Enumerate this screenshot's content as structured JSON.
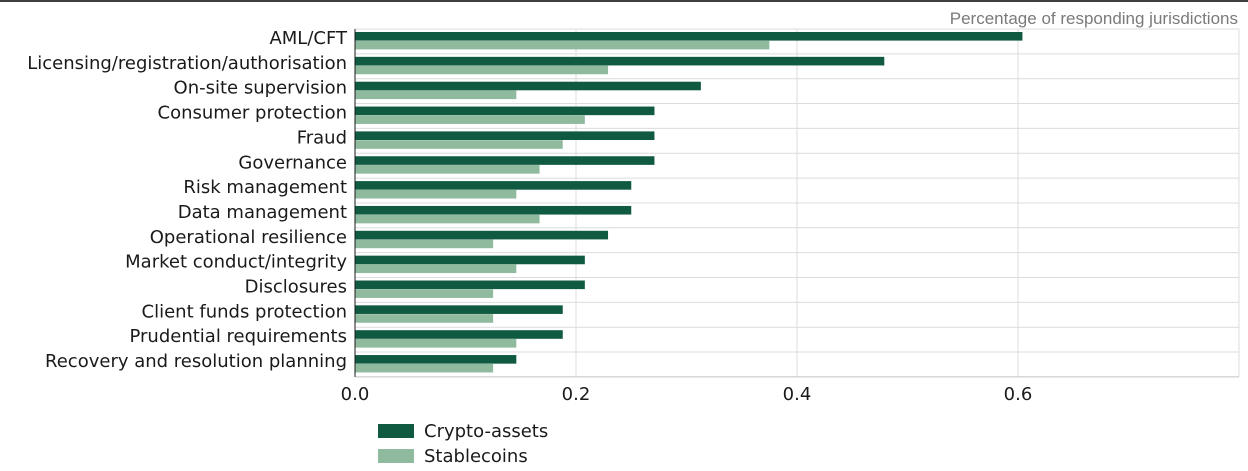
{
  "chart_data": {
    "type": "bar",
    "orientation": "horizontal",
    "note": "Percentage of responding jurisdictions",
    "categories": [
      "AML/CFT",
      "Licensing/registration/authorisation",
      "On-site supervision",
      "Consumer protection",
      "Fraud",
      "Governance",
      "Risk management",
      "Data management",
      "Operational resilience",
      "Market conduct/integrity",
      "Disclosures",
      "Client funds protection",
      "Prudential requirements",
      "Recovery and resolution planning"
    ],
    "series": [
      {
        "name": "Crypto-assets",
        "color": "#0f5a41",
        "values": [
          0.604,
          0.479,
          0.313,
          0.271,
          0.271,
          0.271,
          0.25,
          0.25,
          0.229,
          0.208,
          0.208,
          0.188,
          0.188,
          0.146
        ]
      },
      {
        "name": "Stablecoins",
        "color": "#8fba9e",
        "values": [
          0.375,
          0.229,
          0.146,
          0.208,
          0.188,
          0.167,
          0.146,
          0.167,
          0.125,
          0.146,
          0.125,
          0.125,
          0.146,
          0.125
        ]
      }
    ],
    "xlim": [
      0,
      0.8
    ],
    "xticks": [
      0,
      0.2,
      0.4,
      0.6
    ],
    "xtick_labels": [
      "0.0",
      "0.2",
      "0.4",
      "0.6"
    ],
    "xlabel": "",
    "ylabel": "",
    "grid": true,
    "legend_position": "bottom-left"
  }
}
